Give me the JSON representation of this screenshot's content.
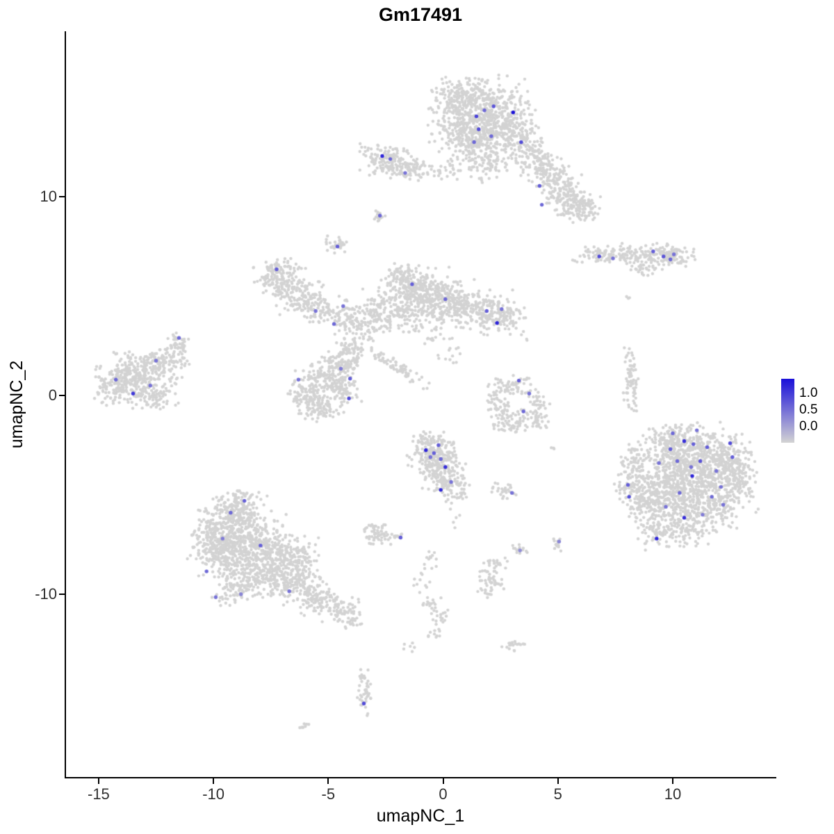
{
  "title": "Gm17491",
  "chart_data": {
    "type": "scatter",
    "title": "Gm17491",
    "xlabel": "umapNC_1",
    "ylabel": "umapNC_2",
    "xlim": [
      -16.42,
      14.45
    ],
    "ylim": [
      -19.2,
      18.33
    ],
    "x_ticks": [
      -15,
      -10,
      -5,
      0,
      5,
      10
    ],
    "y_ticks": [
      -10,
      0,
      10
    ],
    "grid": false,
    "legend_position": "right",
    "point_color_low": "#d3d3d3",
    "point_color_high": "#1a10d9",
    "legend": {
      "ticks": [
        "1.0",
        "0.5",
        "0.0"
      ],
      "high_color": "#1a10d9",
      "low_color": "#d3d3d3"
    },
    "clusters": [
      {
        "cx": 1.6,
        "cy": 14.3,
        "sx": 1.05,
        "sy": 0.85,
        "n": 520
      },
      {
        "cx": 2.4,
        "cy": 13.3,
        "sx": 0.85,
        "sy": 0.65,
        "n": 240
      },
      {
        "cx": 0.9,
        "cy": 12.8,
        "sx": 0.6,
        "sy": 0.5,
        "n": 120
      },
      {
        "cx": 1.9,
        "cy": 11.7,
        "sx": 0.5,
        "sy": 0.45,
        "n": 90
      },
      {
        "cx": 0.7,
        "cy": 15.1,
        "sx": 0.5,
        "sy": 0.45,
        "n": 80
      },
      {
        "cx": 3.8,
        "cy": 12.3,
        "sx": 0.75,
        "sy": 0.45,
        "n": 130,
        "rot": -35
      },
      {
        "cx": 4.8,
        "cy": 10.9,
        "sx": 0.8,
        "sy": 0.45,
        "n": 150,
        "rot": -40
      },
      {
        "cx": 5.5,
        "cy": 9.8,
        "sx": 0.65,
        "sy": 0.4,
        "n": 130,
        "rot": -30
      },
      {
        "cx": 6.1,
        "cy": 9.5,
        "sx": 0.35,
        "sy": 0.3,
        "n": 45
      },
      {
        "cx": -2.5,
        "cy": 11.9,
        "sx": 0.55,
        "sy": 0.4,
        "n": 130
      },
      {
        "cx": -1.6,
        "cy": 11.4,
        "sx": 0.4,
        "sy": 0.3,
        "n": 60
      },
      {
        "cx": -0.4,
        "cy": 11.3,
        "sx": 0.8,
        "sy": 0.25,
        "n": 45
      },
      {
        "cx": -2.75,
        "cy": 9.0,
        "sx": 0.18,
        "sy": 0.15,
        "n": 14
      },
      {
        "cx": -4.6,
        "cy": 7.5,
        "sx": 0.3,
        "sy": 0.25,
        "n": 30
      },
      {
        "cx": 7.6,
        "cy": 7.05,
        "sx": 1.0,
        "sy": 0.22,
        "n": 110
      },
      {
        "cx": 9.3,
        "cy": 7.0,
        "sx": 0.8,
        "sy": 0.3,
        "n": 110
      },
      {
        "cx": 10.0,
        "cy": 7.1,
        "sx": 0.3,
        "sy": 0.2,
        "n": 40
      },
      {
        "cx": 8.8,
        "cy": 6.3,
        "sx": 0.4,
        "sy": 0.2,
        "n": 25
      },
      {
        "cx": 8.1,
        "cy": 5.0,
        "sx": 0.1,
        "sy": 0.1,
        "n": 3
      },
      {
        "cx": -7.1,
        "cy": 5.8,
        "sx": 0.55,
        "sy": 0.5,
        "n": 130
      },
      {
        "cx": -6.2,
        "cy": 5.0,
        "sx": 0.55,
        "sy": 0.5,
        "n": 120
      },
      {
        "cx": -5.4,
        "cy": 4.4,
        "sx": 0.4,
        "sy": 0.35,
        "n": 60
      },
      {
        "cx": -7.3,
        "cy": 6.4,
        "sx": 0.3,
        "sy": 0.2,
        "n": 30
      },
      {
        "cx": -1.2,
        "cy": 5.3,
        "sx": 0.75,
        "sy": 0.6,
        "n": 260
      },
      {
        "cx": 0.1,
        "cy": 4.8,
        "sx": 0.7,
        "sy": 0.5,
        "n": 200
      },
      {
        "cx": 1.5,
        "cy": 4.3,
        "sx": 0.7,
        "sy": 0.5,
        "n": 160
      },
      {
        "cx": 2.5,
        "cy": 3.9,
        "sx": 0.5,
        "sy": 0.4,
        "n": 100
      },
      {
        "cx": -2.3,
        "cy": 4.3,
        "sx": 0.6,
        "sy": 0.5,
        "n": 110
      },
      {
        "cx": -3.4,
        "cy": 3.6,
        "sx": 0.5,
        "sy": 0.5,
        "n": 90
      },
      {
        "cx": -4.3,
        "cy": 4.1,
        "sx": 0.4,
        "sy": 0.4,
        "n": 60
      },
      {
        "cx": -4.0,
        "cy": 2.6,
        "sx": 0.4,
        "sy": 0.5,
        "n": 60
      },
      {
        "cx": -0.8,
        "cy": 3.6,
        "sx": 0.8,
        "sy": 0.5,
        "n": 60
      },
      {
        "cx": -1.8,
        "cy": 6.1,
        "sx": 0.35,
        "sy": 0.3,
        "n": 40
      },
      {
        "cx": 0.1,
        "cy": 2.2,
        "sx": 0.5,
        "sy": 0.4,
        "n": 15
      },
      {
        "cx": -1.9,
        "cy": 1.3,
        "sx": 0.75,
        "sy": 0.15,
        "n": 70,
        "rot": -35
      },
      {
        "cx": -5.0,
        "cy": 1.1,
        "sx": 0.5,
        "sy": 0.45,
        "n": 110
      },
      {
        "cx": -5.8,
        "cy": 0.0,
        "sx": 0.45,
        "sy": 0.6,
        "n": 140
      },
      {
        "cx": -4.3,
        "cy": 1.6,
        "sx": 0.4,
        "sy": 0.35,
        "n": 70
      },
      {
        "cx": -4.4,
        "cy": 0.4,
        "sx": 0.4,
        "sy": 0.45,
        "n": 80
      },
      {
        "cx": -5.2,
        "cy": -0.8,
        "sx": 0.4,
        "sy": 0.3,
        "n": 50
      },
      {
        "cx": -13.3,
        "cy": 1.0,
        "sx": 0.9,
        "sy": 0.7,
        "n": 320
      },
      {
        "cx": -12.1,
        "cy": 1.8,
        "sx": 0.5,
        "sy": 0.35,
        "n": 80
      },
      {
        "cx": -14.3,
        "cy": 0.4,
        "sx": 0.4,
        "sy": 0.4,
        "n": 70
      },
      {
        "cx": -11.6,
        "cy": 2.6,
        "sx": 0.3,
        "sy": 0.25,
        "n": 40
      },
      {
        "cx": -12.6,
        "cy": -0.1,
        "sx": 0.5,
        "sy": 0.3,
        "n": 60
      },
      {
        "cx": 2.9,
        "cy": 0.4,
        "sx": 0.45,
        "sy": 0.3,
        "n": 60
      },
      {
        "cx": 2.4,
        "cy": -0.5,
        "sx": 0.3,
        "sy": 0.4,
        "n": 50
      },
      {
        "cx": 2.9,
        "cy": -1.4,
        "sx": 0.4,
        "sy": 0.3,
        "n": 55
      },
      {
        "cx": 3.9,
        "cy": -1.2,
        "sx": 0.35,
        "sy": 0.3,
        "n": 45
      },
      {
        "cx": 4.2,
        "cy": -0.2,
        "sx": 0.25,
        "sy": 0.3,
        "n": 25
      },
      {
        "cx": 8.2,
        "cy": 0.7,
        "sx": 0.16,
        "sy": 0.8,
        "n": 70
      },
      {
        "cx": 10.6,
        "cy": -3.1,
        "sx": 1.0,
        "sy": 0.8,
        "n": 380
      },
      {
        "cx": 11.8,
        "cy": -4.3,
        "sx": 0.9,
        "sy": 0.8,
        "n": 320
      },
      {
        "cx": 9.9,
        "cy": -4.6,
        "sx": 0.8,
        "sy": 0.7,
        "n": 240
      },
      {
        "cx": 11.0,
        "cy": -5.7,
        "sx": 0.9,
        "sy": 0.6,
        "n": 220
      },
      {
        "cx": 9.0,
        "cy": -5.4,
        "sx": 0.6,
        "sy": 0.6,
        "n": 140
      },
      {
        "cx": 12.4,
        "cy": -2.9,
        "sx": 0.5,
        "sy": 0.5,
        "n": 110
      },
      {
        "cx": 10.2,
        "cy": -2.3,
        "sx": 0.6,
        "sy": 0.4,
        "n": 120
      },
      {
        "cx": 8.2,
        "cy": -4.4,
        "sx": 0.35,
        "sy": 0.6,
        "n": 70
      },
      {
        "cx": 10.4,
        "cy": -6.8,
        "sx": 0.6,
        "sy": 0.4,
        "n": 90
      },
      {
        "cx": 9.1,
        "cy": -6.9,
        "sx": 0.4,
        "sy": 0.4,
        "n": 50
      },
      {
        "cx": 12.9,
        "cy": -4.0,
        "sx": 0.35,
        "sy": 0.5,
        "n": 60
      },
      {
        "cx": 8.3,
        "cy": -3.2,
        "sx": 0.3,
        "sy": 0.4,
        "n": 40
      },
      {
        "cx": -0.5,
        "cy": -2.9,
        "sx": 0.5,
        "sy": 0.5,
        "n": 160
      },
      {
        "cx": -0.1,
        "cy": -3.8,
        "sx": 0.5,
        "sy": 0.5,
        "n": 140
      },
      {
        "cx": 0.4,
        "cy": -4.6,
        "sx": 0.4,
        "sy": 0.4,
        "n": 70
      },
      {
        "cx": -0.7,
        "cy": -2.2,
        "sx": 0.3,
        "sy": 0.2,
        "n": 30
      },
      {
        "cx": 2.7,
        "cy": -4.75,
        "sx": 0.3,
        "sy": 0.2,
        "n": 30
      },
      {
        "cx": -2.85,
        "cy": -6.9,
        "sx": 0.3,
        "sy": 0.28,
        "n": 60
      },
      {
        "cx": -2.1,
        "cy": -7.1,
        "sx": 0.2,
        "sy": 0.15,
        "n": 12
      },
      {
        "cx": 3.3,
        "cy": -7.8,
        "sx": 0.18,
        "sy": 0.18,
        "n": 14
      },
      {
        "cx": 5.0,
        "cy": -7.5,
        "sx": 0.18,
        "sy": 0.18,
        "n": 12
      },
      {
        "cx": -9.2,
        "cy": -6.1,
        "sx": 0.7,
        "sy": 0.6,
        "n": 220
      },
      {
        "cx": -8.4,
        "cy": -7.3,
        "sx": 0.8,
        "sy": 0.7,
        "n": 280
      },
      {
        "cx": -9.6,
        "cy": -8.0,
        "sx": 0.7,
        "sy": 0.6,
        "n": 220
      },
      {
        "cx": -7.3,
        "cy": -8.3,
        "sx": 0.8,
        "sy": 0.6,
        "n": 230
      },
      {
        "cx": -8.6,
        "cy": -9.5,
        "sx": 0.7,
        "sy": 0.5,
        "n": 180
      },
      {
        "cx": -6.5,
        "cy": -9.5,
        "sx": 0.6,
        "sy": 0.5,
        "n": 140
      },
      {
        "cx": -5.5,
        "cy": -10.2,
        "sx": 0.5,
        "sy": 0.4,
        "n": 100
      },
      {
        "cx": -4.5,
        "cy": -10.8,
        "sx": 0.4,
        "sy": 0.3,
        "n": 60
      },
      {
        "cx": -8.8,
        "cy": -5.2,
        "sx": 0.4,
        "sy": 0.3,
        "n": 50
      },
      {
        "cx": -10.2,
        "cy": -7.0,
        "sx": 0.35,
        "sy": 0.5,
        "n": 70
      },
      {
        "cx": -6.4,
        "cy": -8.2,
        "sx": 0.5,
        "sy": 0.5,
        "n": 90
      },
      {
        "cx": -4.0,
        "cy": -11.3,
        "sx": 0.25,
        "sy": 0.2,
        "n": 25
      },
      {
        "cx": -0.7,
        "cy": -8.2,
        "sx": 0.25,
        "sy": 0.25,
        "n": 12
      },
      {
        "cx": -1.0,
        "cy": -9.4,
        "sx": 0.2,
        "sy": 0.3,
        "n": 10
      },
      {
        "cx": -0.4,
        "cy": -10.6,
        "sx": 0.25,
        "sy": 0.3,
        "n": 20
      },
      {
        "cx": -0.3,
        "cy": -11.7,
        "sx": 0.15,
        "sy": 0.5,
        "n": 22,
        "rot": -20
      },
      {
        "cx": -1.5,
        "cy": -12.6,
        "sx": 0.15,
        "sy": 0.15,
        "n": 6
      },
      {
        "cx": 2.05,
        "cy": -9.2,
        "sx": 0.28,
        "sy": 0.5,
        "n": 55
      },
      {
        "cx": 2.4,
        "cy": -8.4,
        "sx": 0.2,
        "sy": 0.15,
        "n": 12
      },
      {
        "cx": 3.1,
        "cy": -12.5,
        "sx": 0.25,
        "sy": 0.2,
        "n": 20
      },
      {
        "cx": -3.4,
        "cy": -14.9,
        "sx": 0.18,
        "sy": 0.55,
        "n": 45
      },
      {
        "cx": -6.1,
        "cy": -16.6,
        "sx": 0.15,
        "sy": 0.12,
        "n": 8
      },
      {
        "cx": 3.6,
        "cy": 2.75,
        "sx": 0.08,
        "sy": 0.08,
        "n": 2
      },
      {
        "cx": 0.4,
        "cy": -6.2,
        "sx": 0.25,
        "sy": 0.25,
        "n": 5
      },
      {
        "cx": 4.7,
        "cy": -2.5,
        "sx": 0.2,
        "sy": 0.2,
        "n": 3
      }
    ],
    "highlights": [
      [
        1.45,
        14.05,
        0.75
      ],
      [
        1.8,
        14.35,
        0.55
      ],
      [
        2.2,
        14.55,
        0.65
      ],
      [
        3.05,
        14.25,
        1.0
      ],
      [
        1.55,
        13.4,
        0.7
      ],
      [
        2.1,
        13.05,
        0.55
      ],
      [
        1.35,
        12.75,
        0.55
      ],
      [
        3.4,
        12.75,
        0.7
      ],
      [
        4.2,
        10.55,
        0.6
      ],
      [
        4.3,
        9.6,
        0.55
      ],
      [
        -2.65,
        12.05,
        0.9
      ],
      [
        -2.3,
        11.9,
        0.55
      ],
      [
        -1.65,
        11.2,
        0.5
      ],
      [
        -2.75,
        9.05,
        0.55
      ],
      [
        -4.6,
        7.5,
        0.6
      ],
      [
        6.8,
        7.0,
        0.7
      ],
      [
        7.4,
        6.9,
        0.5
      ],
      [
        9.15,
        7.25,
        0.6
      ],
      [
        9.6,
        7.0,
        0.65
      ],
      [
        9.9,
        6.85,
        0.55
      ],
      [
        10.05,
        7.1,
        0.5
      ],
      [
        -7.25,
        6.35,
        0.6
      ],
      [
        -5.55,
        4.25,
        0.5
      ],
      [
        -1.35,
        5.6,
        0.6
      ],
      [
        0.1,
        4.85,
        0.55
      ],
      [
        1.9,
        4.25,
        0.6
      ],
      [
        2.35,
        3.65,
        0.9
      ],
      [
        2.55,
        4.35,
        0.5
      ],
      [
        -4.75,
        3.6,
        0.55
      ],
      [
        -4.35,
        4.5,
        0.5
      ],
      [
        -4.05,
        0.85,
        0.6
      ],
      [
        -4.1,
        -0.15,
        0.7
      ],
      [
        -6.3,
        0.8,
        0.5
      ],
      [
        -4.45,
        1.35,
        0.45
      ],
      [
        -11.5,
        2.9,
        0.55
      ],
      [
        -12.5,
        1.75,
        0.5
      ],
      [
        -14.25,
        0.8,
        0.55
      ],
      [
        -13.5,
        0.1,
        0.8
      ],
      [
        -12.75,
        0.5,
        0.5
      ],
      [
        3.3,
        0.75,
        0.6
      ],
      [
        3.75,
        0.1,
        0.5
      ],
      [
        3.5,
        -0.8,
        0.55
      ],
      [
        10.5,
        -2.3,
        0.85
      ],
      [
        10.9,
        -2.45,
        0.6
      ],
      [
        11.5,
        -2.6,
        0.6
      ],
      [
        12.5,
        -2.4,
        0.7
      ],
      [
        12.6,
        -3.1,
        0.6
      ],
      [
        10.2,
        -3.3,
        0.55
      ],
      [
        10.8,
        -3.6,
        0.5
      ],
      [
        10.85,
        -4.05,
        0.9
      ],
      [
        11.7,
        -5.1,
        0.55
      ],
      [
        12.1,
        -4.6,
        0.5
      ],
      [
        10.5,
        -6.15,
        0.85
      ],
      [
        9.3,
        -7.2,
        0.9
      ],
      [
        8.1,
        -5.1,
        0.7
      ],
      [
        8.05,
        -4.5,
        0.6
      ],
      [
        9.4,
        -3.4,
        0.5
      ],
      [
        9.9,
        -2.7,
        0.6
      ],
      [
        11.2,
        -3.3,
        0.65
      ],
      [
        11.9,
        -3.8,
        0.5
      ],
      [
        10.3,
        -4.9,
        0.55
      ],
      [
        9.7,
        -5.6,
        0.5
      ],
      [
        11.3,
        -6.0,
        0.45
      ],
      [
        12.2,
        -5.5,
        0.5
      ],
      [
        10.0,
        -1.9,
        0.55
      ],
      [
        11.05,
        -1.75,
        0.5
      ],
      [
        -0.75,
        -2.75,
        0.9
      ],
      [
        -0.4,
        -2.9,
        0.6
      ],
      [
        -0.1,
        -3.2,
        0.55
      ],
      [
        -0.55,
        -3.1,
        0.5
      ],
      [
        0.1,
        -3.6,
        0.85
      ],
      [
        -0.2,
        -2.5,
        0.6
      ],
      [
        -0.1,
        -4.75,
        0.9
      ],
      [
        0.35,
        -4.35,
        0.5
      ],
      [
        3.0,
        -4.9,
        0.5
      ],
      [
        -1.85,
        -7.15,
        0.6
      ],
      [
        3.35,
        -7.8,
        0.35
      ],
      [
        5.05,
        -7.35,
        0.4
      ],
      [
        -8.65,
        -5.3,
        0.6
      ],
      [
        -9.25,
        -5.9,
        0.55
      ],
      [
        -7.95,
        -7.55,
        0.6
      ],
      [
        -10.3,
        -8.85,
        0.55
      ],
      [
        -9.9,
        -10.15,
        0.5
      ],
      [
        -8.8,
        -10.0,
        0.4
      ],
      [
        -6.7,
        -9.85,
        0.5
      ],
      [
        -9.6,
        -7.2,
        0.45
      ],
      [
        -3.45,
        -15.5,
        0.7
      ]
    ]
  }
}
